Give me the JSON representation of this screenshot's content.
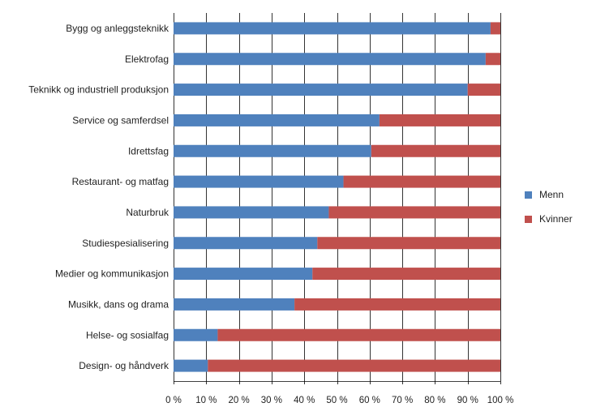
{
  "chart_data": {
    "type": "bar",
    "orientation": "horizontal",
    "stacked": true,
    "percent_stacked": true,
    "categories": [
      "Bygg og anleggsteknikk",
      "Elektrofag",
      "Teknikk og industriell produksjon",
      "Service og samferdsel",
      "Idrettsfag",
      "Restaurant- og matfag",
      "Naturbruk",
      "Studiespesialisering",
      "Medier og kommunikasjon",
      "Musikk, dans og drama",
      "Helse- og sosialfag",
      "Design- og håndverk"
    ],
    "series": [
      {
        "name": "Menn",
        "color": "#4f81bd",
        "values": [
          97,
          95.5,
          90,
          63,
          60.5,
          52,
          47.5,
          44,
          42.5,
          37,
          13.5,
          10.5
        ]
      },
      {
        "name": "Kvinner",
        "color": "#c0504d",
        "values": [
          3,
          4.5,
          10,
          37,
          39.5,
          48,
          52.5,
          56,
          57.5,
          63,
          86.5,
          89.5
        ]
      }
    ],
    "xlim": [
      0,
      100
    ],
    "x_ticks": [
      {
        "value": 0,
        "label": "0 %"
      },
      {
        "value": 10,
        "label": "10 %"
      },
      {
        "value": 20,
        "label": "20 %"
      },
      {
        "value": 30,
        "label": "30 %"
      },
      {
        "value": 40,
        "label": "40 %"
      },
      {
        "value": 50,
        "label": "50 %"
      },
      {
        "value": 60,
        "label": "60 %"
      },
      {
        "value": 70,
        "label": "70 %"
      },
      {
        "value": 80,
        "label": "80 %"
      },
      {
        "value": 90,
        "label": "90 %"
      },
      {
        "value": 100,
        "label": "100 %"
      }
    ],
    "grid": true,
    "legend_position": "right",
    "title": "",
    "xlabel": "",
    "ylabel": ""
  }
}
